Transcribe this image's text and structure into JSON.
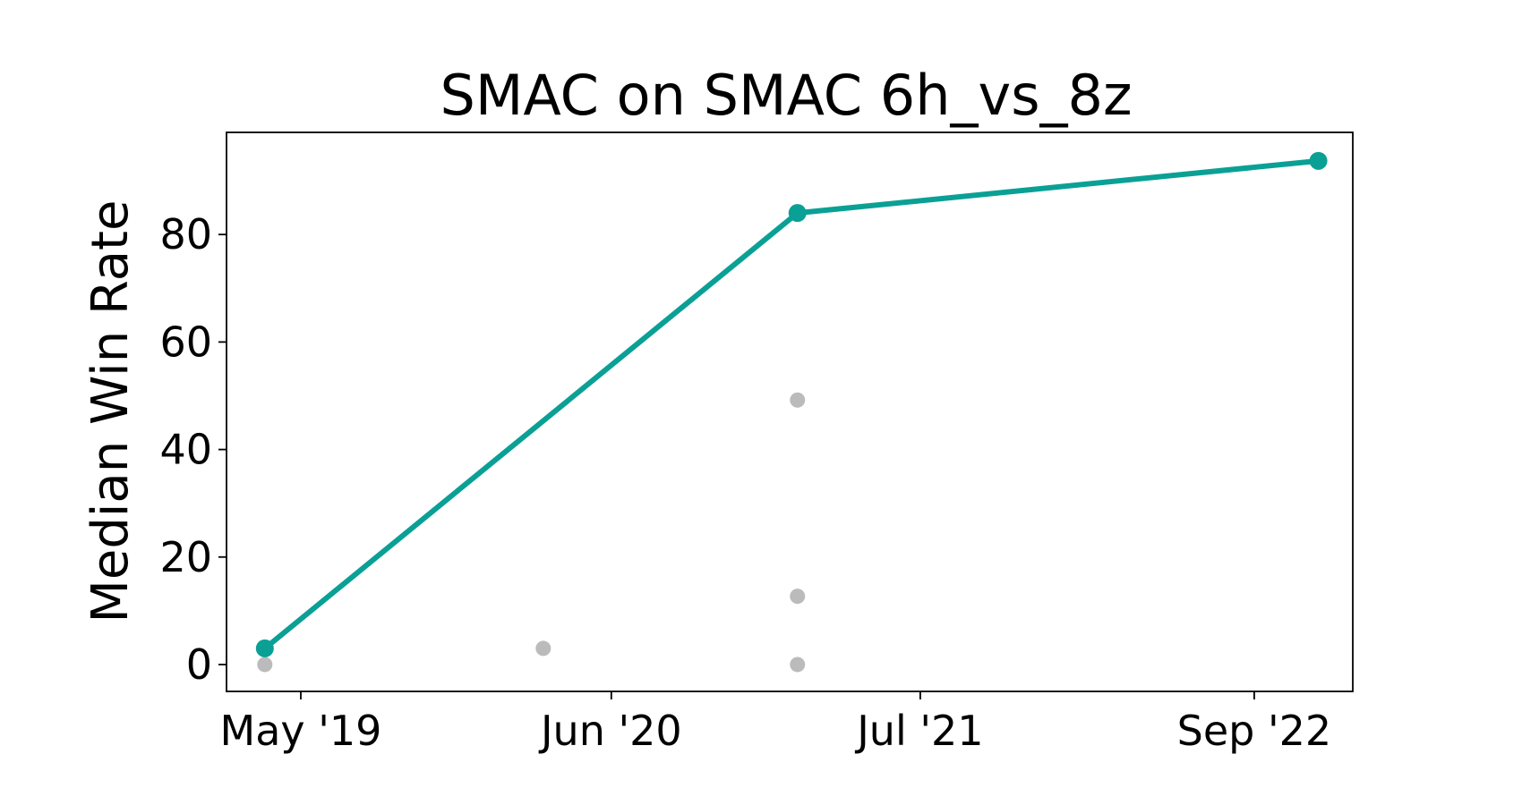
{
  "chart_data": {
    "type": "scatter",
    "title": "SMAC on SMAC 6h_vs_8z",
    "xlabel": "",
    "ylabel": "Median Win Rate",
    "xlim": [
      "2019-01-26",
      "2023-01-05"
    ],
    "ylim": [
      -5,
      99
    ],
    "x_ticks": [
      {
        "date": "2019-05-01",
        "label": "May '19"
      },
      {
        "date": "2020-06-01",
        "label": "Jun '20"
      },
      {
        "date": "2021-07-01",
        "label": "Jul '21"
      },
      {
        "date": "2022-09-01",
        "label": "Sep '22"
      }
    ],
    "y_ticks": [
      0,
      20,
      40,
      60,
      80
    ],
    "grid": false,
    "series": [
      {
        "style": "line-markers",
        "color": "#0aa095",
        "points": [
          {
            "x": "2019-03-16",
            "y": 3
          },
          {
            "x": "2021-01-25",
            "y": 84
          },
          {
            "x": "2022-11-22",
            "y": 93.7
          }
        ]
      },
      {
        "style": "points",
        "color": "#bbbbbb",
        "points": [
          {
            "x": "2019-03-16",
            "y": 0
          },
          {
            "x": "2020-03-06",
            "y": 3
          },
          {
            "x": "2021-01-25",
            "y": 49.2
          },
          {
            "x": "2021-01-25",
            "y": 12.7
          },
          {
            "x": "2021-01-25",
            "y": 0
          }
        ]
      }
    ]
  }
}
